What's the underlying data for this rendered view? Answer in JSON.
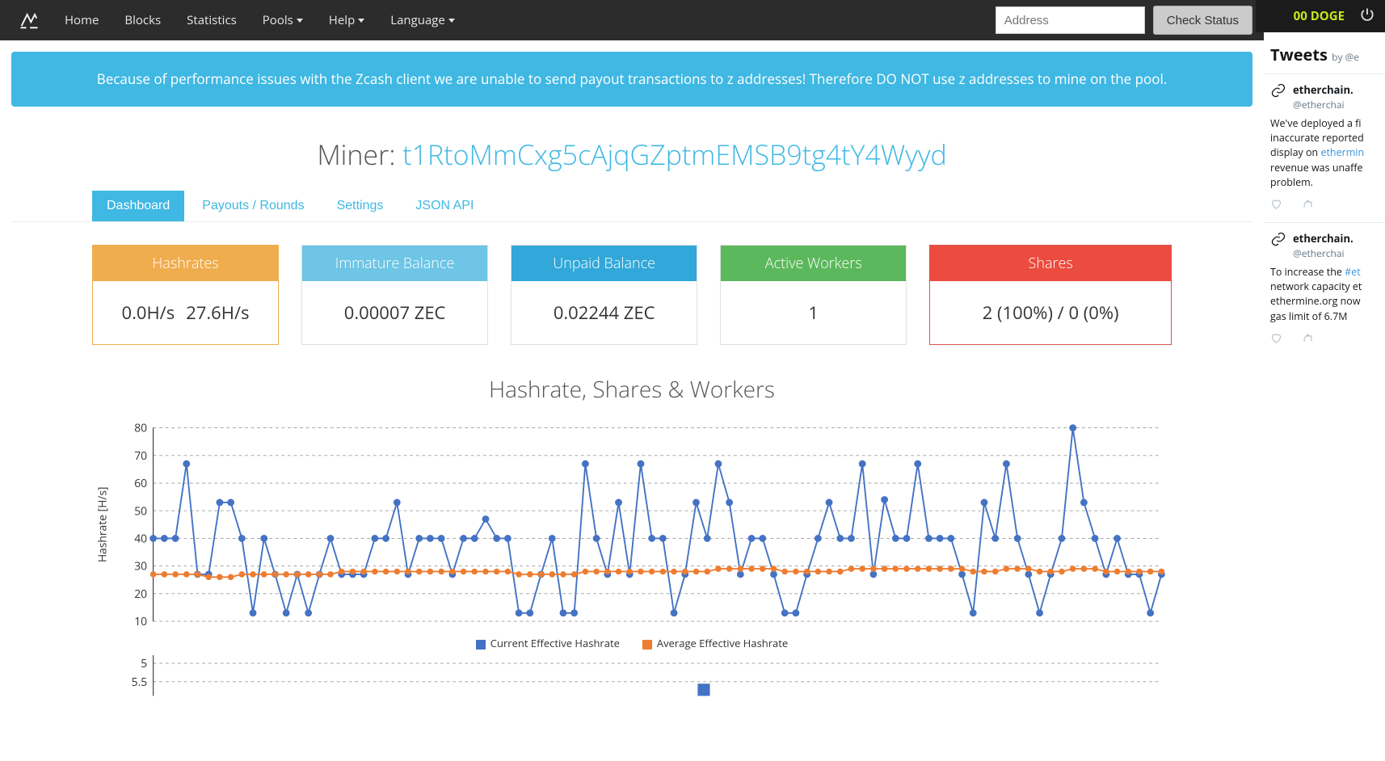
{
  "topbar": {
    "doge_label": "00 DOGE"
  },
  "nav": {
    "items": [
      "Home",
      "Blocks",
      "Statistics",
      "Pools",
      "Help",
      "Language"
    ],
    "dropdown_indices": [
      3,
      4,
      5
    ],
    "address_placeholder": "Address",
    "check_button": "Check Status"
  },
  "alert": "Because of performance issues with the Zcash client we are unable to send payout transactions to z addresses! Therefore DO NOT use z addresses to mine on the pool.",
  "miner": {
    "label": "Miner: ",
    "address": "t1RtoMmCxg5cAjqGZptmEMSB9tg4tY4Wyyd"
  },
  "tabs": [
    "Dashboard",
    "Payouts / Rounds",
    "Settings",
    "JSON API"
  ],
  "active_tab": 0,
  "panels": {
    "hashrates": {
      "title": "Hashrates",
      "v1": "0.0H/s",
      "v2": "27.6H/s"
    },
    "immature": {
      "title": "Immature Balance",
      "value": "0.00007 ZEC"
    },
    "unpaid": {
      "title": "Unpaid Balance",
      "value": "0.02244 ZEC"
    },
    "workers": {
      "title": "Active Workers",
      "value": "1"
    },
    "shares": {
      "title": "Shares",
      "value": "2 (100%) / 0 (0%)"
    }
  },
  "chart": {
    "title": "Hashrate, Shares & Workers",
    "type": "line",
    "ylabel": "Hashrate [H/s]",
    "ylim": [
      10,
      80
    ],
    "yticks": [
      10,
      20,
      30,
      40,
      50,
      60,
      70,
      80
    ],
    "background_color": "#ffffff",
    "grid_color": "#999999",
    "grid_dash": "3 3",
    "series": [
      {
        "name": "Current Effective Hashrate",
        "color": "#4472c4",
        "marker": "circle",
        "marker_size": 3.5,
        "line_width": 1.5,
        "values": [
          40,
          40,
          40,
          67,
          27,
          27,
          53,
          53,
          40,
          13,
          40,
          27,
          13,
          27,
          13,
          27,
          40,
          27,
          27,
          27,
          40,
          40,
          53,
          27,
          40,
          40,
          40,
          27,
          40,
          40,
          47,
          40,
          40,
          13,
          13,
          27,
          40,
          13,
          13,
          67,
          40,
          27,
          53,
          27,
          67,
          40,
          40,
          13,
          27,
          53,
          40,
          67,
          53,
          27,
          40,
          40,
          27,
          13,
          13,
          27,
          40,
          53,
          40,
          40,
          67,
          27,
          54,
          40,
          40,
          67,
          40,
          40,
          40,
          27,
          13,
          53,
          40,
          67,
          40,
          27,
          13,
          27,
          40,
          80,
          53,
          40,
          27,
          40,
          27,
          27,
          13,
          27
        ]
      },
      {
        "name": "Average Effective Hashrate",
        "color": "#ed7d31",
        "marker": "circle",
        "marker_size": 3,
        "line_width": 1.5,
        "values": [
          27,
          27,
          27,
          27,
          27,
          26,
          26,
          26,
          27,
          27,
          27,
          27,
          27,
          27,
          27,
          27,
          27,
          28,
          28,
          28,
          28,
          28,
          28,
          28,
          28,
          28,
          28,
          28,
          28,
          28,
          28,
          28,
          28,
          27,
          27,
          27,
          27,
          27,
          27,
          28,
          28,
          28,
          28,
          28,
          28,
          28,
          28,
          28,
          28,
          28,
          28,
          29,
          29,
          29,
          29,
          29,
          29,
          28,
          28,
          28,
          28,
          28,
          28,
          29,
          29,
          29,
          29,
          29,
          29,
          29,
          29,
          29,
          29,
          29,
          28,
          28,
          28,
          29,
          29,
          29,
          28,
          28,
          28,
          29,
          29,
          29,
          28,
          28,
          28,
          28,
          28,
          28
        ]
      }
    ],
    "legend": [
      {
        "label": "Current Effective Hashrate",
        "color": "#4472c4"
      },
      {
        "label": "Average Effective Hashrate",
        "color": "#ed7d31"
      }
    ],
    "sub_yticks": [
      5,
      5.5
    ]
  },
  "twitter": {
    "heading": "Tweets",
    "by": "by @e",
    "tweets": [
      {
        "name": "etherchain.",
        "handle": "@etherchai",
        "body_pre": "We've deployed a fi inaccurate reported display on ",
        "body_link": "ethermin",
        "body_post": " revenue was unaffe problem."
      },
      {
        "name": "etherchain.",
        "handle": "@etherchai",
        "body_pre": "To increase the ",
        "body_link": "#et",
        "body_post": " network capacity et ethermine.org now gas limit of 6.7M"
      }
    ]
  }
}
